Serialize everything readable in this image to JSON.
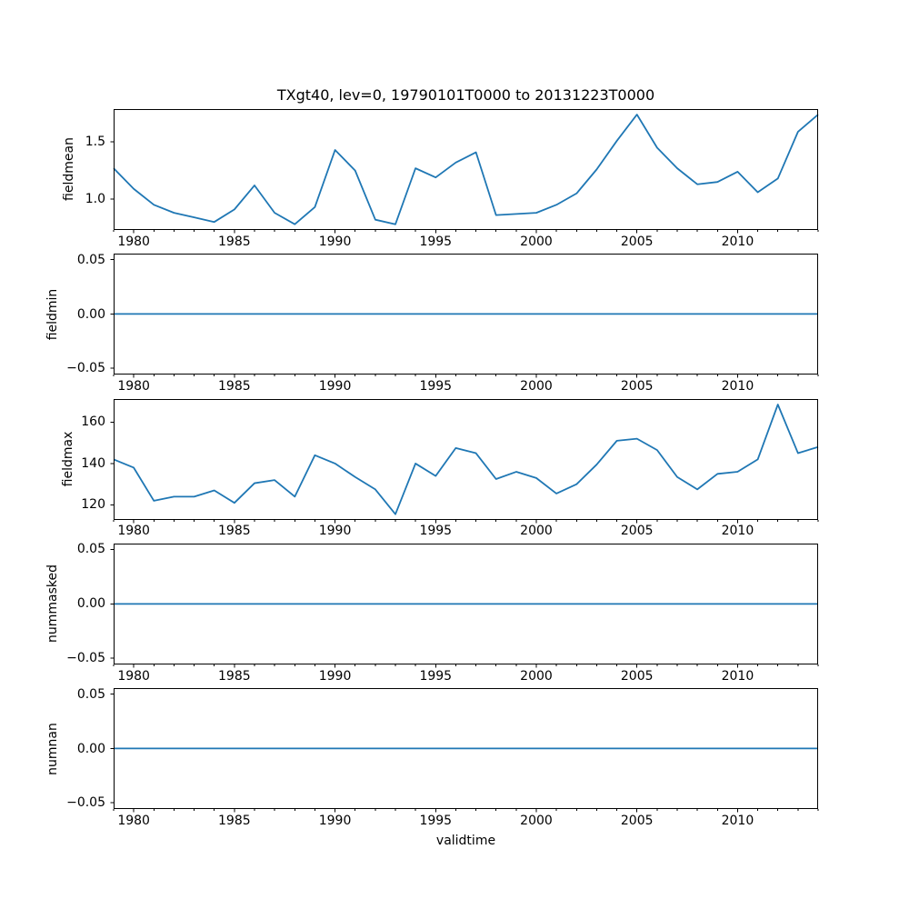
{
  "figure": {
    "title": "TXgt40, lev=0, 19790101T0000 to 20131223T0000",
    "xlabel": "validtime",
    "line_color": "#1f77b4",
    "axis_color": "#000000",
    "background_color": "#ffffff"
  },
  "chart_data": [
    {
      "type": "line",
      "ylabel": "fieldmean",
      "x": [
        1979,
        1980,
        1981,
        1982,
        1983,
        1984,
        1985,
        1986,
        1987,
        1988,
        1989,
        1990,
        1991,
        1992,
        1993,
        1994,
        1995,
        1996,
        1997,
        1998,
        1999,
        2000,
        2001,
        2002,
        2003,
        2004,
        2005,
        2006,
        2007,
        2008,
        2009,
        2010,
        2011,
        2012,
        2013,
        2014
      ],
      "values": [
        1.27,
        1.09,
        0.95,
        0.88,
        0.84,
        0.8,
        0.91,
        1.12,
        0.88,
        0.78,
        0.93,
        1.43,
        1.25,
        0.82,
        0.78,
        1.27,
        1.19,
        1.32,
        1.41,
        0.86,
        0.87,
        0.88,
        0.95,
        1.05,
        1.26,
        1.51,
        1.74,
        1.45,
        1.27,
        1.13,
        1.15,
        1.24,
        1.06,
        1.18,
        1.59,
        1.74
      ],
      "xlim": [
        1979,
        2014
      ],
      "ylim": [
        0.732,
        1.788
      ],
      "xticks": [
        1980,
        1985,
        1990,
        1995,
        2000,
        2005,
        2010
      ],
      "xtick_labels": [
        "1980",
        "1985",
        "1990",
        "1995",
        "2000",
        "2005",
        "2010"
      ],
      "yticks": [
        {
          "value": 1.0,
          "label": "1.0"
        },
        {
          "value": 1.5,
          "label": "1.5"
        }
      ],
      "minor_xtick_step_years": 1,
      "grid": false
    },
    {
      "type": "line",
      "ylabel": "fieldmin",
      "x": [
        1979,
        1980,
        1981,
        1982,
        1983,
        1984,
        1985,
        1986,
        1987,
        1988,
        1989,
        1990,
        1991,
        1992,
        1993,
        1994,
        1995,
        1996,
        1997,
        1998,
        1999,
        2000,
        2001,
        2002,
        2003,
        2004,
        2005,
        2006,
        2007,
        2008,
        2009,
        2010,
        2011,
        2012,
        2013,
        2014
      ],
      "values": [
        0,
        0,
        0,
        0,
        0,
        0,
        0,
        0,
        0,
        0,
        0,
        0,
        0,
        0,
        0,
        0,
        0,
        0,
        0,
        0,
        0,
        0,
        0,
        0,
        0,
        0,
        0,
        0,
        0,
        0,
        0,
        0,
        0,
        0,
        0,
        0
      ],
      "xlim": [
        1979,
        2014
      ],
      "ylim": [
        -0.0555,
        0.0555
      ],
      "xticks": [
        1980,
        1985,
        1990,
        1995,
        2000,
        2005,
        2010
      ],
      "xtick_labels": [
        "1980",
        "1985",
        "1990",
        "1995",
        "2000",
        "2005",
        "2010"
      ],
      "yticks": [
        {
          "value": -0.05,
          "label": "−0.05"
        },
        {
          "value": 0.0,
          "label": "0.00"
        },
        {
          "value": 0.05,
          "label": "0.05"
        }
      ],
      "minor_xtick_step_years": 1,
      "grid": false
    },
    {
      "type": "line",
      "ylabel": "fieldmax",
      "x": [
        1979,
        1980,
        1981,
        1982,
        1983,
        1984,
        1985,
        1986,
        1987,
        1988,
        1989,
        1990,
        1991,
        1992,
        1993,
        1994,
        1995,
        1996,
        1997,
        1998,
        1999,
        2000,
        2001,
        2002,
        2003,
        2004,
        2005,
        2006,
        2007,
        2008,
        2009,
        2010,
        2011,
        2012,
        2013,
        2014
      ],
      "values": [
        142,
        138,
        122,
        124,
        124,
        127,
        121,
        130.5,
        132,
        124,
        144,
        140,
        133.5,
        127.5,
        115.5,
        140,
        134,
        147.5,
        145,
        132.5,
        136,
        133,
        125.5,
        130,
        139.5,
        151,
        152,
        146.5,
        133.5,
        127.5,
        135,
        136,
        142,
        168.5,
        145,
        148
      ],
      "xlim": [
        1979,
        2014
      ],
      "ylim": [
        112.85,
        171.15
      ],
      "xticks": [
        1980,
        1985,
        1990,
        1995,
        2000,
        2005,
        2010
      ],
      "xtick_labels": [
        "1980",
        "1985",
        "1990",
        "1995",
        "2000",
        "2005",
        "2010"
      ],
      "yticks": [
        {
          "value": 120,
          "label": "120"
        },
        {
          "value": 140,
          "label": "140"
        },
        {
          "value": 160,
          "label": "160"
        }
      ],
      "minor_xtick_step_years": 1,
      "grid": false
    },
    {
      "type": "line",
      "ylabel": "nummasked",
      "x": [
        1979,
        1980,
        1981,
        1982,
        1983,
        1984,
        1985,
        1986,
        1987,
        1988,
        1989,
        1990,
        1991,
        1992,
        1993,
        1994,
        1995,
        1996,
        1997,
        1998,
        1999,
        2000,
        2001,
        2002,
        2003,
        2004,
        2005,
        2006,
        2007,
        2008,
        2009,
        2010,
        2011,
        2012,
        2013,
        2014
      ],
      "values": [
        0,
        0,
        0,
        0,
        0,
        0,
        0,
        0,
        0,
        0,
        0,
        0,
        0,
        0,
        0,
        0,
        0,
        0,
        0,
        0,
        0,
        0,
        0,
        0,
        0,
        0,
        0,
        0,
        0,
        0,
        0,
        0,
        0,
        0,
        0,
        0
      ],
      "xlim": [
        1979,
        2014
      ],
      "ylim": [
        -0.0555,
        0.0555
      ],
      "xticks": [
        1980,
        1985,
        1990,
        1995,
        2000,
        2005,
        2010
      ],
      "xtick_labels": [
        "1980",
        "1985",
        "1990",
        "1995",
        "2000",
        "2005",
        "2010"
      ],
      "yticks": [
        {
          "value": -0.05,
          "label": "−0.05"
        },
        {
          "value": 0.0,
          "label": "0.00"
        },
        {
          "value": 0.05,
          "label": "0.05"
        }
      ],
      "minor_xtick_step_years": 1,
      "grid": false
    },
    {
      "type": "line",
      "ylabel": "numnan",
      "x": [
        1979,
        1980,
        1981,
        1982,
        1983,
        1984,
        1985,
        1986,
        1987,
        1988,
        1989,
        1990,
        1991,
        1992,
        1993,
        1994,
        1995,
        1996,
        1997,
        1998,
        1999,
        2000,
        2001,
        2002,
        2003,
        2004,
        2005,
        2006,
        2007,
        2008,
        2009,
        2010,
        2011,
        2012,
        2013,
        2014
      ],
      "values": [
        0,
        0,
        0,
        0,
        0,
        0,
        0,
        0,
        0,
        0,
        0,
        0,
        0,
        0,
        0,
        0,
        0,
        0,
        0,
        0,
        0,
        0,
        0,
        0,
        0,
        0,
        0,
        0,
        0,
        0,
        0,
        0,
        0,
        0,
        0,
        0
      ],
      "xlim": [
        1979,
        2014
      ],
      "ylim": [
        -0.0555,
        0.0555
      ],
      "xticks": [
        1980,
        1985,
        1990,
        1995,
        2000,
        2005,
        2010
      ],
      "xtick_labels": [
        "1980",
        "1985",
        "1990",
        "1995",
        "2000",
        "2005",
        "2010"
      ],
      "yticks": [
        {
          "value": -0.05,
          "label": "−0.05"
        },
        {
          "value": 0.0,
          "label": "0.00"
        },
        {
          "value": 0.05,
          "label": "0.05"
        }
      ],
      "minor_xtick_step_years": 1,
      "grid": false
    }
  ]
}
